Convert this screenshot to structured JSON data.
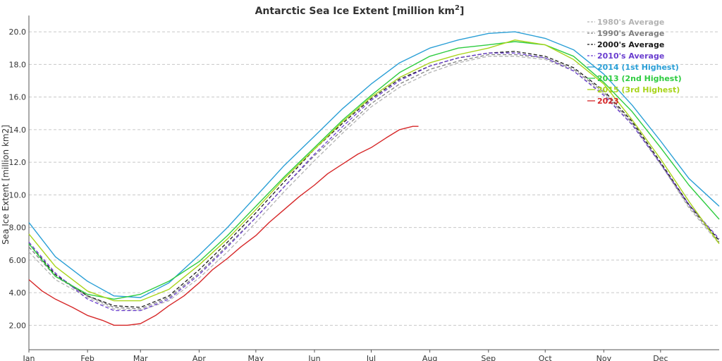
{
  "chart_data": {
    "type": "line",
    "title": "Antarctic Sea Ice Extent [million km",
    "title_sup": "2",
    "title_end": "]",
    "ylabel": "Sea Ice Extent [million km2]",
    "ylim": [
      0.5,
      21.0
    ],
    "yticks": [
      "2.00",
      "4.00",
      "6.00",
      "8.00",
      "10.0",
      "12.0",
      "14.0",
      "16.0",
      "18.0",
      "20.0"
    ],
    "ytick_values": [
      2,
      4,
      6,
      8,
      10,
      12,
      14,
      16,
      18,
      20
    ],
    "x_unit": "day of year",
    "xlim": [
      1,
      366
    ],
    "months": [
      "Jan",
      "Feb",
      "Mar",
      "Apr",
      "May",
      "Jun",
      "Jul",
      "Aug",
      "Sep",
      "Oct",
      "Nov",
      "Dec"
    ],
    "month_start_days": [
      1,
      32,
      60,
      91,
      121,
      152,
      182,
      213,
      244,
      274,
      305,
      335
    ],
    "grid": "horizontal dashed",
    "legend_position": "top-right",
    "series": [
      {
        "name": "1980's Average",
        "color": "#b3b3b3",
        "dash": "dashed",
        "x": [
          1,
          15,
          32,
          46,
          60,
          75,
          91,
          106,
          121,
          136,
          152,
          167,
          182,
          197,
          213,
          228,
          244,
          258,
          274,
          289,
          305,
          320,
          335,
          350,
          366
        ],
        "y": [
          6.5,
          4.8,
          3.7,
          3.0,
          2.9,
          3.5,
          4.9,
          6.5,
          8.3,
          10.2,
          12.1,
          13.8,
          15.4,
          16.6,
          17.5,
          18.1,
          18.5,
          18.5,
          18.3,
          17.6,
          16.2,
          14.3,
          11.9,
          9.2,
          7.0
        ]
      },
      {
        "name": "1990's Average",
        "color": "#7f7f7f",
        "dash": "dashed",
        "x": [
          1,
          15,
          32,
          46,
          60,
          75,
          91,
          106,
          121,
          136,
          152,
          167,
          182,
          197,
          213,
          228,
          244,
          258,
          274,
          289,
          305,
          320,
          335,
          350,
          366
        ],
        "y": [
          6.8,
          5.0,
          3.8,
          3.1,
          3.0,
          3.7,
          5.2,
          6.9,
          8.6,
          10.5,
          12.4,
          14.0,
          15.6,
          16.8,
          17.7,
          18.2,
          18.6,
          18.6,
          18.4,
          17.7,
          16.3,
          14.4,
          11.9,
          9.3,
          7.1
        ]
      },
      {
        "name": "2000's Average",
        "color": "#1a1a1a",
        "dash": "dashed",
        "x": [
          1,
          15,
          32,
          46,
          60,
          75,
          91,
          106,
          121,
          136,
          152,
          167,
          182,
          197,
          213,
          228,
          244,
          258,
          274,
          289,
          305,
          320,
          335,
          350,
          366
        ],
        "y": [
          7.0,
          5.1,
          3.8,
          3.2,
          3.1,
          3.8,
          5.4,
          7.1,
          8.9,
          10.8,
          12.8,
          14.4,
          15.9,
          17.1,
          17.9,
          18.4,
          18.7,
          18.8,
          18.5,
          17.8,
          16.4,
          14.5,
          12.0,
          9.4,
          7.2
        ]
      },
      {
        "name": "2010's Average",
        "color": "#6a3ecf",
        "dash": "dashed",
        "x": [
          1,
          15,
          32,
          46,
          60,
          75,
          91,
          106,
          121,
          136,
          152,
          167,
          182,
          197,
          213,
          228,
          244,
          258,
          274,
          289,
          305,
          320,
          335,
          350,
          366
        ],
        "y": [
          7.1,
          5.2,
          3.6,
          2.9,
          2.9,
          3.6,
          5.1,
          6.8,
          8.6,
          10.5,
          12.5,
          14.2,
          15.8,
          17.0,
          17.9,
          18.4,
          18.7,
          18.7,
          18.4,
          17.6,
          16.1,
          14.3,
          11.9,
          9.4,
          7.3
        ]
      },
      {
        "name": "2014 (1st Highest)",
        "color": "#2a9fd6",
        "dash": "solid",
        "x": [
          1,
          15,
          32,
          46,
          60,
          75,
          91,
          106,
          121,
          136,
          152,
          167,
          182,
          197,
          213,
          228,
          244,
          258,
          274,
          289,
          305,
          320,
          335,
          350,
          366
        ],
        "y": [
          8.3,
          6.2,
          4.7,
          3.8,
          3.7,
          4.6,
          6.3,
          8.0,
          9.9,
          11.8,
          13.6,
          15.3,
          16.8,
          18.1,
          19.0,
          19.5,
          19.9,
          20.0,
          19.6,
          18.9,
          17.4,
          15.5,
          13.3,
          11.0,
          9.3
        ]
      },
      {
        "name": "2013 (2nd Highest)",
        "color": "#2ecc40",
        "dash": "solid",
        "x": [
          1,
          15,
          32,
          46,
          60,
          75,
          91,
          106,
          121,
          136,
          152,
          167,
          182,
          197,
          213,
          228,
          244,
          258,
          274,
          289,
          305,
          320,
          335,
          350,
          366
        ],
        "y": [
          7.0,
          5.0,
          3.9,
          3.6,
          3.9,
          4.7,
          5.9,
          7.5,
          9.3,
          11.1,
          12.9,
          14.6,
          16.1,
          17.5,
          18.5,
          19.0,
          19.2,
          19.4,
          19.2,
          18.5,
          16.9,
          15.1,
          12.9,
          10.6,
          8.5
        ]
      },
      {
        "name": "2015 (3rd Highest)",
        "color": "#a8d41a",
        "dash": "solid",
        "x": [
          1,
          15,
          32,
          46,
          60,
          75,
          91,
          106,
          121,
          136,
          152,
          167,
          182,
          197,
          213,
          228,
          244,
          258,
          274,
          289,
          305,
          320,
          335,
          350,
          366
        ],
        "y": [
          7.6,
          5.6,
          4.1,
          3.5,
          3.5,
          4.2,
          5.7,
          7.3,
          9.1,
          11.0,
          12.8,
          14.5,
          16.0,
          17.2,
          18.1,
          18.6,
          19.0,
          19.5,
          19.2,
          18.3,
          16.8,
          14.6,
          12.2,
          9.6,
          7.0
        ]
      },
      {
        "name": "2023",
        "color": "#d62728",
        "dash": "solid",
        "x": [
          1,
          8,
          15,
          24,
          32,
          40,
          46,
          53,
          60,
          68,
          75,
          83,
          91,
          98,
          106,
          113,
          121,
          128,
          136,
          144,
          152,
          159,
          167,
          175,
          182,
          190,
          197,
          204,
          207
        ],
        "y": [
          4.8,
          4.1,
          3.6,
          3.1,
          2.6,
          2.3,
          2.0,
          2.0,
          2.1,
          2.6,
          3.2,
          3.8,
          4.6,
          5.4,
          6.1,
          6.8,
          7.5,
          8.3,
          9.1,
          9.9,
          10.6,
          11.3,
          11.9,
          12.5,
          12.9,
          13.5,
          14.0,
          14.2,
          14.2
        ]
      }
    ]
  }
}
